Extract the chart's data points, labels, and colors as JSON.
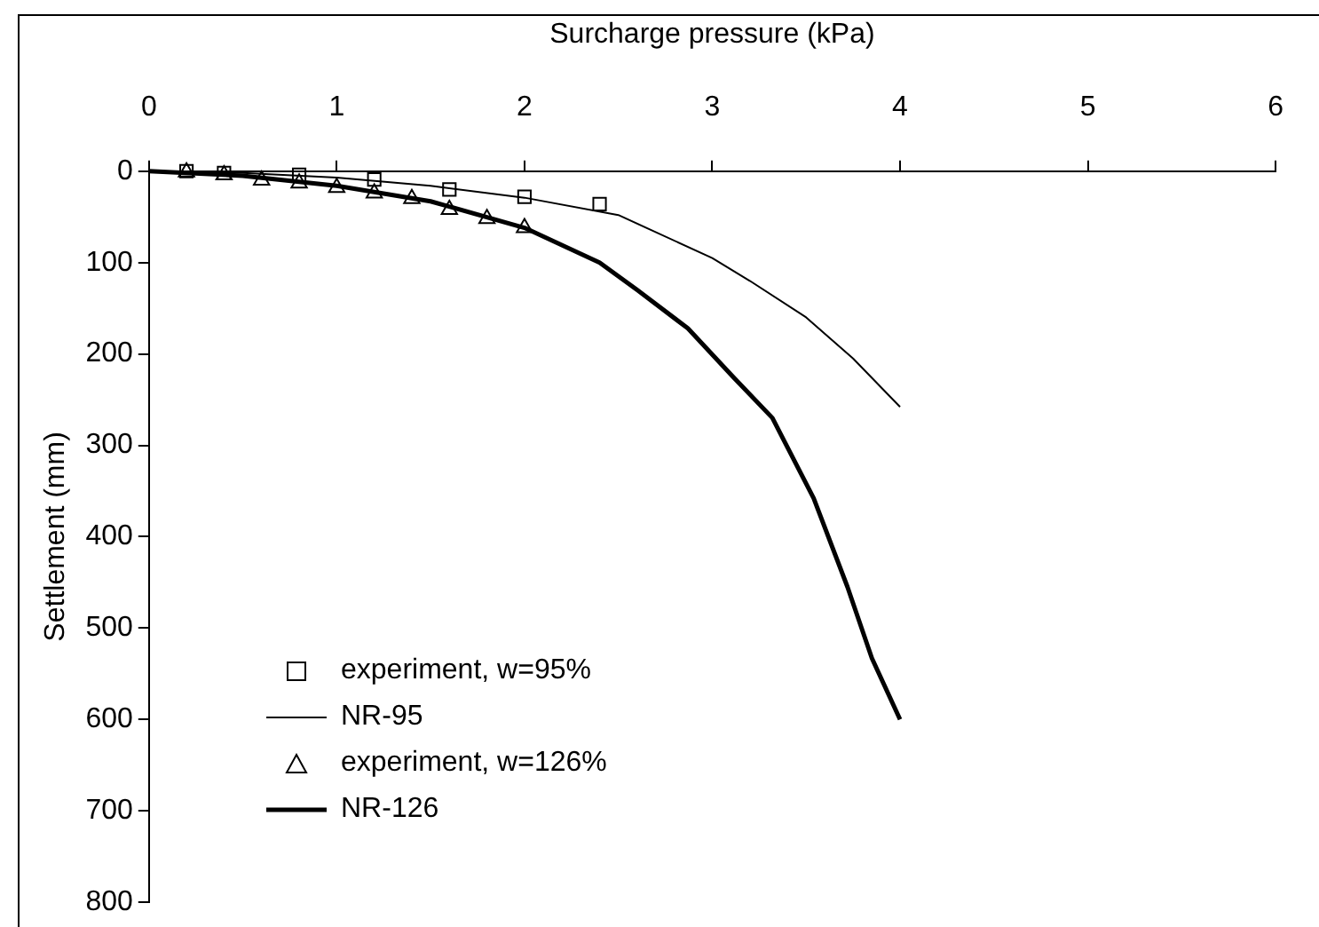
{
  "chart_data": {
    "type": "line",
    "xlabel": "Surcharge pressure (kPa)",
    "ylabel": "Settlement (mm)",
    "xlim": [
      0,
      6
    ],
    "xticks": [
      0,
      1,
      2,
      3,
      4,
      5,
      6
    ],
    "ylim": [
      800,
      0
    ],
    "yticks": [
      0,
      100,
      200,
      300,
      400,
      500,
      600,
      700,
      800
    ],
    "grid": false,
    "legend": "bottom left",
    "line_style": "solid",
    "series": [
      {
        "name": "experiment, w=95%",
        "type": "scatter",
        "marker": "square",
        "color": "#000000",
        "x": [
          0.2,
          0.4,
          0.8,
          1.2,
          1.6,
          2.0,
          2.4
        ],
        "values": [
          0,
          2,
          4,
          9,
          20,
          28,
          36
        ]
      },
      {
        "name": "NR-95",
        "type": "line",
        "marker": "none",
        "color": "#000000",
        "x": [
          0,
          0.5,
          1,
          1.5,
          2,
          2.5,
          3,
          3.2,
          3.5,
          3.75,
          4
        ],
        "values": [
          0,
          2,
          7,
          16,
          29,
          48,
          95,
          120,
          160,
          205,
          258
        ]
      },
      {
        "name": "experiment, w=126%",
        "type": "scatter",
        "marker": "triangle",
        "color": "#000000",
        "x": [
          0.2,
          0.4,
          0.6,
          0.8,
          1.0,
          1.2,
          1.4,
          1.6,
          1.8,
          2.0
        ],
        "values": [
          1,
          4,
          10,
          13,
          18,
          24,
          30,
          42,
          52,
          62
        ]
      },
      {
        "name": "NR-126",
        "type": "line",
        "marker": "none",
        "color": "#000000",
        "x": [
          0,
          0.5,
          1,
          1.5,
          2,
          2.4,
          2.6,
          2.87,
          3.11,
          3.32,
          3.54,
          3.72,
          3.85,
          4
        ],
        "values": [
          0,
          5,
          16,
          33,
          62,
          100,
          130,
          172,
          225,
          270,
          358,
          455,
          533,
          600
        ]
      }
    ]
  }
}
